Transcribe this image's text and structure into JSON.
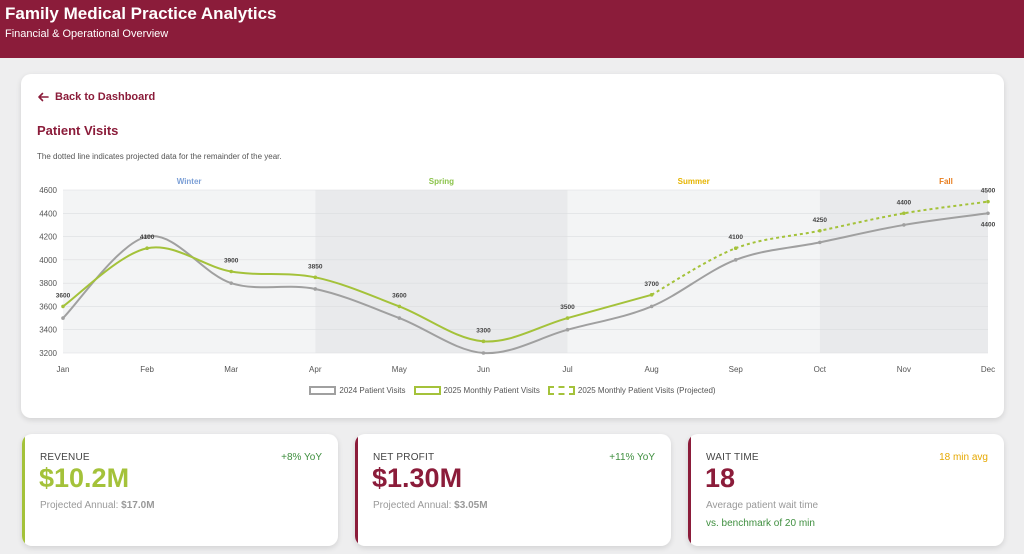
{
  "header": {
    "title": "Family Medical Practice Analytics",
    "subtitle": "Financial & Operational Overview"
  },
  "nav": {
    "back_label": "Back to Dashboard"
  },
  "chart_section": {
    "title": "Patient Visits",
    "note": "The dotted line indicates projected data for the remainder of the year."
  },
  "chart_data": {
    "type": "line",
    "categories": [
      "Jan",
      "Feb",
      "Mar",
      "Apr",
      "May",
      "Jun",
      "Jul",
      "Aug",
      "Sep",
      "Oct",
      "Nov",
      "Dec"
    ],
    "ylim": [
      3200,
      4600
    ],
    "yticks": [
      3200,
      3400,
      3600,
      3800,
      4000,
      4200,
      4400,
      4600
    ],
    "grid": "horizontal",
    "seasons": [
      {
        "label": "Winter",
        "start": "Jan",
        "end": "Apr",
        "color": "#7b9fd6"
      },
      {
        "label": "Spring",
        "start": "Apr",
        "end": "Jul",
        "color": "#8bc34a"
      },
      {
        "label": "Summer",
        "start": "Jul",
        "end": "Oct",
        "color": "#e6b400"
      },
      {
        "label": "Fall",
        "start": "Oct",
        "end": "Dec",
        "color": "#e87d1e"
      }
    ],
    "series": [
      {
        "name": "2024 Patient Visits",
        "color": "#a0a0a0",
        "values": [
          3500,
          4200,
          3800,
          3750,
          3500,
          3200,
          3400,
          3600,
          4000,
          4150,
          4300,
          4400
        ]
      },
      {
        "name": "2025 Monthly Patient Visits",
        "color": "#a4c23a",
        "values": [
          3600,
          4100,
          3900,
          3850,
          3600,
          3300,
          3500,
          3700,
          null,
          null,
          null,
          null
        ]
      },
      {
        "name": "2025 Monthly Patient Visits (Projected)",
        "color": "#a4c23a",
        "dashed": true,
        "values": [
          null,
          null,
          null,
          null,
          null,
          null,
          null,
          3700,
          4100,
          4250,
          4400,
          4500
        ]
      }
    ],
    "data_labels": [
      {
        "series": "2025",
        "month": "Jan",
        "value": "3600"
      },
      {
        "series": "2025",
        "month": "Feb",
        "value": "4100"
      },
      {
        "series": "2025",
        "month": "Mar",
        "value": "3900"
      },
      {
        "series": "2025",
        "month": "Apr",
        "value": "3850"
      },
      {
        "series": "2025",
        "month": "May",
        "value": "3600"
      },
      {
        "series": "2025",
        "month": "Jun",
        "value": "3300"
      },
      {
        "series": "2025",
        "month": "Jul",
        "value": "3500"
      },
      {
        "series": "2025",
        "month": "Aug",
        "value": "3700"
      },
      {
        "series": "2025",
        "month": "Sep",
        "value": "4100"
      },
      {
        "series": "2025",
        "month": "Oct",
        "value": "4250"
      },
      {
        "series": "2025",
        "month": "Nov",
        "value": "4400"
      },
      {
        "series": "2025",
        "month": "Dec",
        "value": "4500"
      },
      {
        "series": "2024",
        "month": "Dec",
        "value": "4400",
        "below": true
      }
    ]
  },
  "kpis": [
    {
      "label": "REVENUE",
      "change": "+8% YoY",
      "value": "$10.2M",
      "sub_prefix": "Projected Annual: ",
      "sub_value": "$17.0M",
      "sub2": "",
      "accent": "#a4c23a",
      "value_color": "#a4c23a",
      "change_color": "#3f8f3f"
    },
    {
      "label": "NET PROFIT",
      "change": "+11% YoY",
      "value": "$1.30M",
      "sub_prefix": "Projected Annual: ",
      "sub_value": "$3.05M",
      "sub2": "",
      "accent": "#8b1c3a",
      "value_color": "#8b1c3a",
      "change_color": "#3f8f3f"
    },
    {
      "label": "WAIT TIME",
      "change": "18 min avg",
      "value": "18",
      "sub_prefix": "Average patient wait time",
      "sub_value": "",
      "sub2": "vs. benchmark of 20 min",
      "accent": "#8b1c3a",
      "value_color": "#8b1c3a",
      "change_color": "#e6a800"
    }
  ]
}
